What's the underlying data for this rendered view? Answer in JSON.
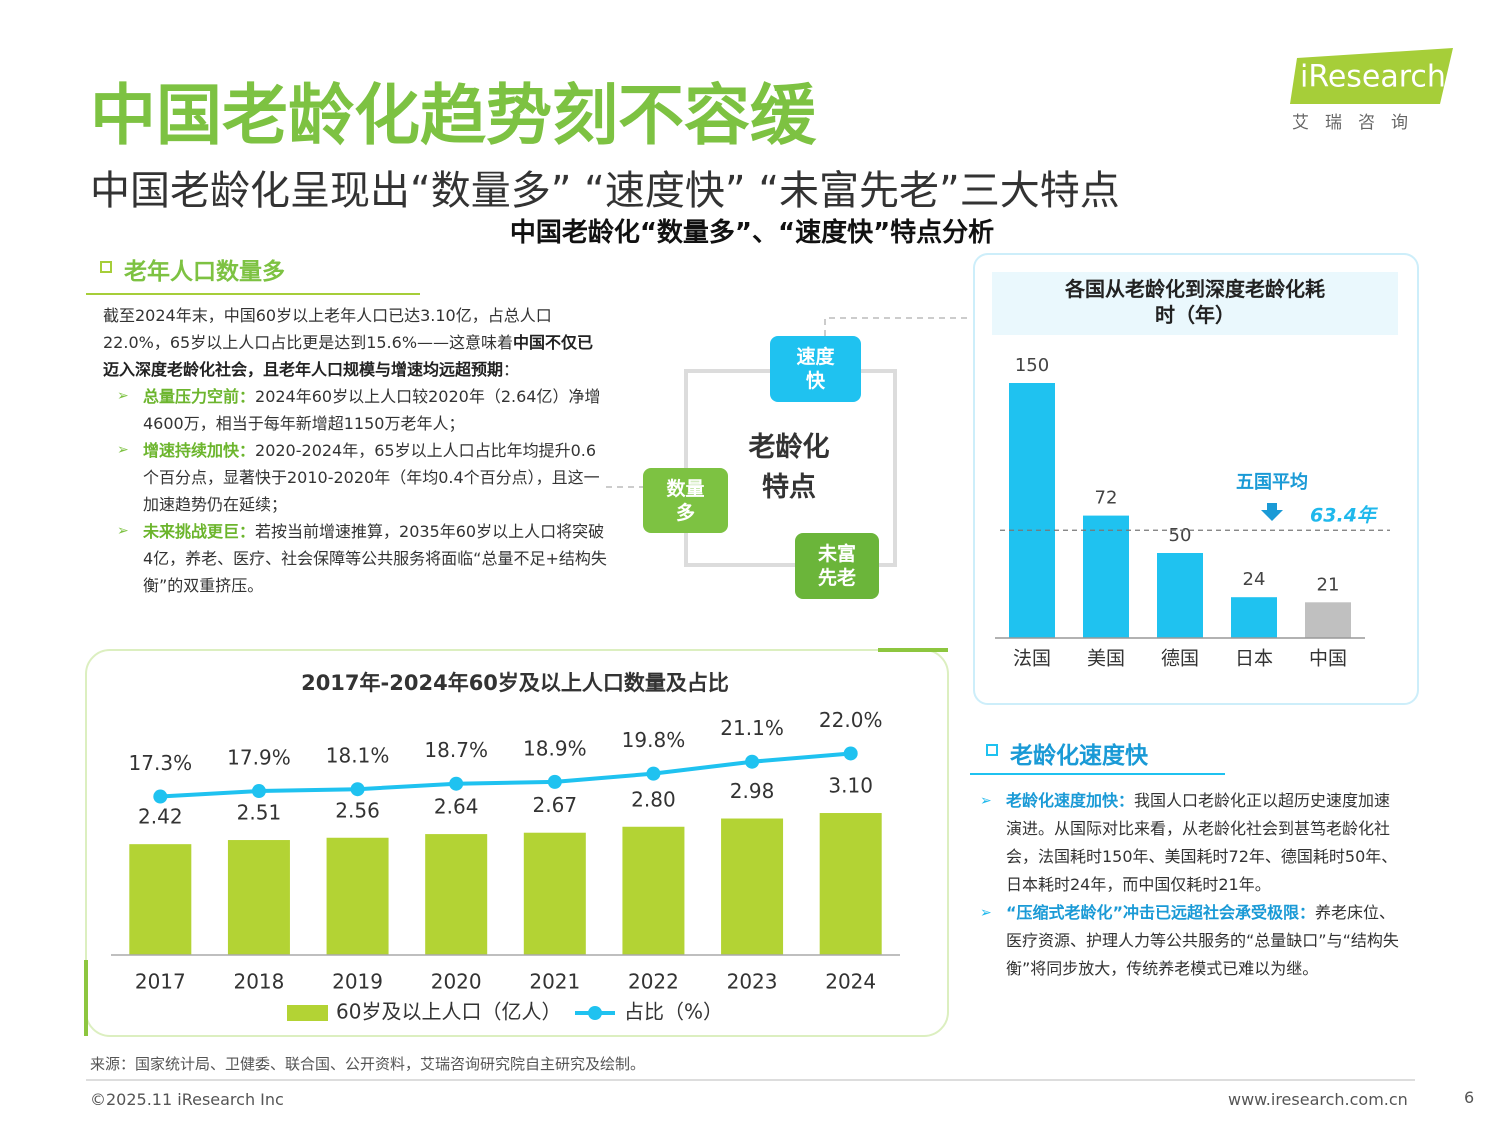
{
  "header": {
    "title": "中国老龄化趋势刻不容缓",
    "subtitle": "中国老龄化呈现出“数量多” “速度快” “未富先老”三大特点",
    "section_title": "中国老龄化“数量多”、“速度快”特点分析"
  },
  "logo": {
    "name": "iResearch",
    "tagline": "艾瑞咨询"
  },
  "left_section": {
    "heading": "老年人口数量多",
    "paragraph": [
      "截至2024年末，中国60岁以上老年人口已达3.10亿，占总人口22.0%，65岁以上人口占比更是达到15.6%——这意味着",
      "中国不仅已迈入深度老龄化社会，且老年人口规模与增速均远超预期",
      "："
    ],
    "bullets": [
      {
        "label": "总量压力空前：",
        "text": "2024年60岁以上人口较2020年（2.64亿）净增4600万，相当于每年新增超1150万老年人；"
      },
      {
        "label": "增速持续加快：",
        "text": "2020-2024年，65岁以上人口占比年均提升0.6个百分点，显著快于2010-2020年（年均0.4个百分点），且这一加速趋势仍在延续；"
      },
      {
        "label": "未来挑战更巨：",
        "text": "若按当前增速推算，2035年60岁以上人口将突破4亿，养老、医疗、社会保障等公共服务将面临“总量不足+结构失衡”的双重挤压。"
      }
    ]
  },
  "diagram": {
    "center": "老龄化特点",
    "nodes": [
      "速度快",
      "数量多",
      "未富先老"
    ]
  },
  "chart_data": [
    {
      "type": "bar",
      "title": "各国从老龄化到深度老龄化耗时（年）",
      "categories": [
        "法国",
        "美国",
        "德国",
        "日本",
        "中国"
      ],
      "values": [
        150,
        72,
        50,
        24,
        21
      ],
      "colors": [
        "#1fc2f0",
        "#1fc2f0",
        "#1fc2f0",
        "#1fc2f0",
        "#c0c0c0"
      ],
      "ylim": [
        0,
        150
      ],
      "reference_line": {
        "title": "五国平均",
        "value": 63.4,
        "label": "63.4年"
      }
    },
    {
      "type": "combo",
      "title": "2017年-2024年60岁及以上人口数量及占比",
      "categories": [
        "2017",
        "2018",
        "2019",
        "2020",
        "2021",
        "2022",
        "2023",
        "2024"
      ],
      "ylim": [
        0,
        5
      ],
      "y2lim": [
        0,
        25
      ],
      "series": [
        {
          "name": "60岁及以上人口（亿人）",
          "kind": "bar",
          "color": "#b3d334",
          "values": [
            2.42,
            2.51,
            2.56,
            2.64,
            2.67,
            2.8,
            2.98,
            3.1
          ],
          "value_labels": [
            "2.42",
            "2.51",
            "2.56",
            "2.64",
            "2.67",
            "2.80",
            "2.98",
            "3.10"
          ]
        },
        {
          "name": "占比（%）",
          "kind": "line",
          "axis": "y2",
          "color": "#1fc2f0",
          "values": [
            17.3,
            17.9,
            18.1,
            18.7,
            18.9,
            19.8,
            21.1,
            22.0
          ],
          "value_labels": [
            "17.3%",
            "17.9%",
            "18.1%",
            "18.7%",
            "18.9%",
            "19.8%",
            "21.1%",
            "22.0%"
          ]
        }
      ]
    }
  ],
  "right_section": {
    "heading": "老龄化速度快",
    "bullets": [
      {
        "label": "老龄化速度加快：",
        "text": "我国人口老龄化正以超历史速度加速演进。从国际对比来看，从老龄化社会到甚笃老龄化社会，法国耗时150年、美国耗时72年、德国耗时50年、日本耗时24年，而中国仅耗时21年。"
      },
      {
        "label": "“压缩式老龄化”冲击已远超社会承受极限：",
        "text": "养老床位、医疗资源、护理人力等公共服务的“总量缺口”与“结构失衡”将同步放大，传统养老模式已难以为继。"
      }
    ]
  },
  "footer": {
    "source": "来源：国家统计局、卫健委、联合国、公开资料，艾瑞咨询研究院自主研究及绘制。",
    "copyright": "©2025.11 iResearch Inc",
    "url": "www.iresearch.com.cn",
    "page": "6"
  }
}
